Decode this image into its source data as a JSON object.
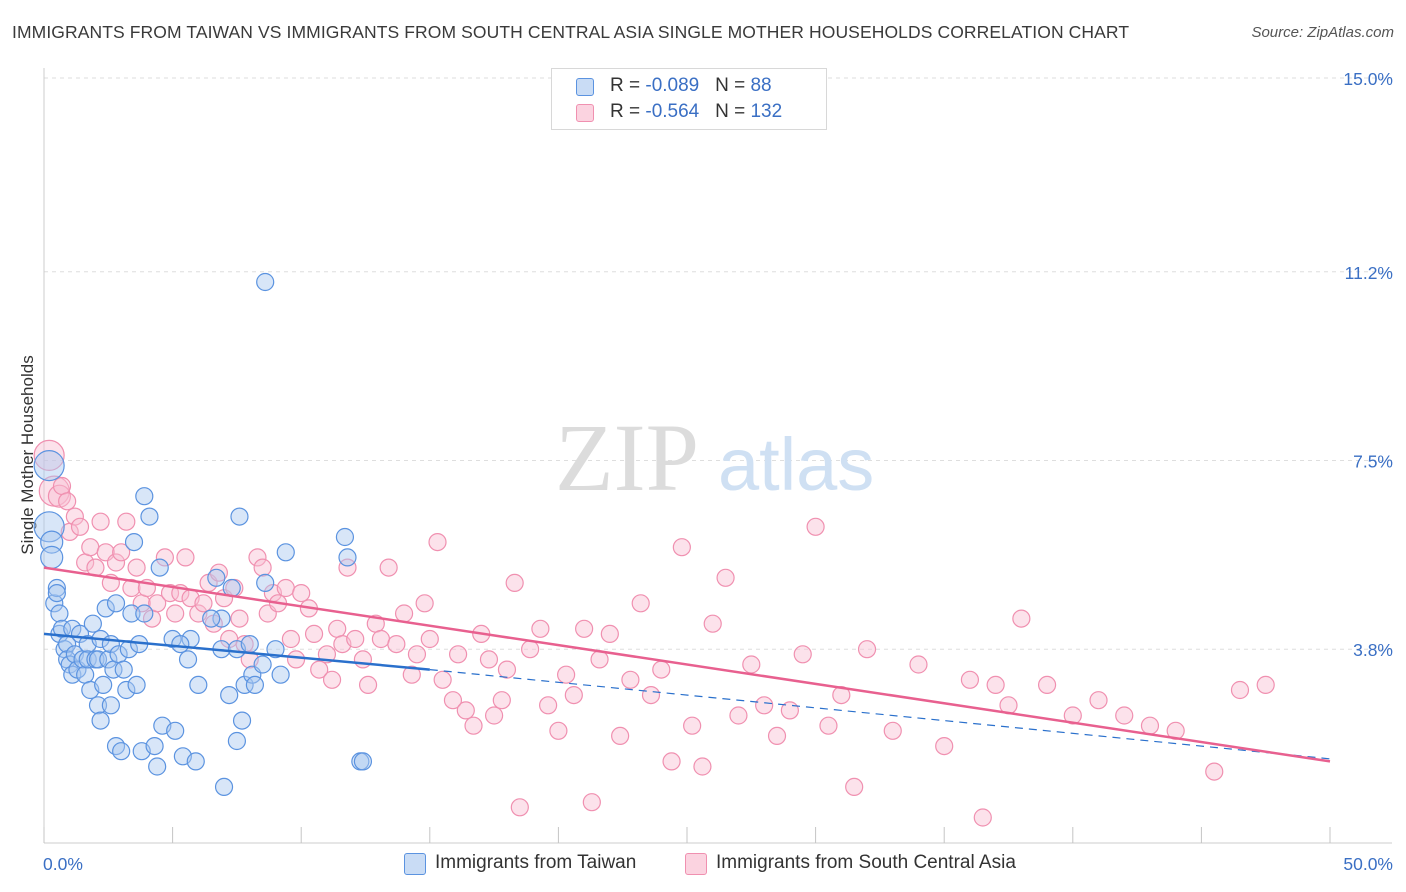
{
  "header": {
    "title": "IMMIGRANTS FROM TAIWAN VS IMMIGRANTS FROM SOUTH CENTRAL ASIA SINGLE MOTHER HOUSEHOLDS CORRELATION CHART",
    "source": "Source: ZipAtlas.com"
  },
  "watermark": {
    "zip": "ZIP",
    "atlas": "atlas"
  },
  "legend": {
    "taiwan": {
      "r_label": "R = ",
      "r": "-0.089",
      "n_label": "N = ",
      "n": " 88"
    },
    "sca": {
      "r_label": "R = ",
      "r": "-0.564",
      "n_label": "N = ",
      "n": "132"
    }
  },
  "chart_data": {
    "type": "scatter",
    "title": "IMMIGRANTS FROM TAIWAN VS IMMIGRANTS FROM SOUTH CENTRAL ASIA SINGLE MOTHER HOUSEHOLDS CORRELATION CHART",
    "xlabel": "",
    "ylabel": "Single Mother Households",
    "xlim": [
      0,
      50
    ],
    "ylim": [
      0,
      15
    ],
    "x_tick_labels": [
      "0.0%",
      "50.0%"
    ],
    "y_ticks": [
      3.8,
      7.5,
      11.2,
      15.0
    ],
    "y_tick_labels": [
      "3.8%",
      "7.5%",
      "11.2%",
      "15.0%"
    ],
    "grid": true,
    "legend_position": "top-center",
    "colors": {
      "taiwan": "#5b93e0",
      "sca": "#f090b0",
      "taiwan_line": "#2a70cc",
      "sca_line": "#e8608f"
    },
    "series": [
      {
        "name": "Immigrants from Taiwan",
        "color": "#5b93e0",
        "trend": {
          "x": [
            0,
            15
          ],
          "y": [
            4.1,
            3.4
          ],
          "dashed_extension_to_x": 50,
          "dashed_end_y": 1.65
        },
        "points": [
          [
            0.2,
            7.4
          ],
          [
            0.2,
            6.2
          ],
          [
            0.3,
            5.9
          ],
          [
            0.3,
            5.6
          ],
          [
            0.4,
            4.7
          ],
          [
            0.5,
            5.0
          ],
          [
            0.5,
            4.9
          ],
          [
            0.6,
            4.5
          ],
          [
            0.6,
            4.1
          ],
          [
            0.7,
            4.2
          ],
          [
            0.8,
            3.8
          ],
          [
            0.9,
            3.9
          ],
          [
            0.9,
            3.6
          ],
          [
            1.0,
            3.5
          ],
          [
            1.1,
            3.3
          ],
          [
            1.1,
            4.2
          ],
          [
            1.2,
            3.7
          ],
          [
            1.3,
            3.4
          ],
          [
            1.4,
            4.1
          ],
          [
            1.5,
            3.6
          ],
          [
            1.6,
            3.3
          ],
          [
            1.7,
            3.9
          ],
          [
            1.7,
            3.6
          ],
          [
            1.8,
            3.0
          ],
          [
            1.9,
            4.3
          ],
          [
            2.0,
            3.6
          ],
          [
            2.1,
            3.6
          ],
          [
            2.1,
            2.7
          ],
          [
            2.2,
            2.4
          ],
          [
            2.2,
            4.0
          ],
          [
            2.3,
            3.1
          ],
          [
            2.4,
            4.6
          ],
          [
            2.5,
            3.6
          ],
          [
            2.6,
            3.9
          ],
          [
            2.6,
            2.7
          ],
          [
            2.7,
            3.4
          ],
          [
            2.8,
            4.7
          ],
          [
            2.8,
            1.9
          ],
          [
            2.9,
            3.7
          ],
          [
            3.0,
            1.8
          ],
          [
            3.1,
            3.4
          ],
          [
            3.2,
            3.0
          ],
          [
            3.3,
            3.8
          ],
          [
            3.4,
            4.5
          ],
          [
            3.5,
            5.9
          ],
          [
            3.6,
            3.1
          ],
          [
            3.7,
            3.9
          ],
          [
            3.8,
            1.8
          ],
          [
            3.9,
            6.8
          ],
          [
            3.9,
            4.5
          ],
          [
            4.1,
            6.4
          ],
          [
            4.3,
            1.9
          ],
          [
            4.4,
            1.5
          ],
          [
            4.5,
            5.4
          ],
          [
            4.6,
            2.3
          ],
          [
            5.0,
            4.0
          ],
          [
            5.1,
            2.2
          ],
          [
            5.4,
            1.7
          ],
          [
            5.6,
            3.6
          ],
          [
            5.7,
            4.0
          ],
          [
            5.9,
            1.6
          ],
          [
            6.0,
            3.1
          ],
          [
            6.7,
            5.2
          ],
          [
            6.9,
            4.4
          ],
          [
            6.9,
            3.8
          ],
          [
            7.0,
            1.1
          ],
          [
            7.2,
            2.9
          ],
          [
            7.3,
            5.0
          ],
          [
            7.5,
            2.0
          ],
          [
            7.5,
            3.8
          ],
          [
            7.6,
            6.4
          ],
          [
            7.7,
            2.4
          ],
          [
            7.8,
            3.1
          ],
          [
            8.1,
            3.3
          ],
          [
            8.6,
            11.0
          ],
          [
            8.6,
            5.1
          ],
          [
            9.0,
            3.8
          ],
          [
            9.2,
            3.3
          ],
          [
            9.4,
            5.7
          ],
          [
            11.7,
            6.0
          ],
          [
            11.8,
            5.6
          ],
          [
            12.3,
            1.6
          ],
          [
            12.4,
            1.6
          ],
          [
            8.0,
            3.9
          ],
          [
            8.2,
            3.1
          ],
          [
            8.5,
            3.5
          ],
          [
            5.3,
            3.9
          ],
          [
            6.5,
            4.4
          ]
        ]
      },
      {
        "name": "Immigrants from South Central Asia",
        "color": "#f090b0",
        "trend": {
          "x": [
            0,
            50
          ],
          "y": [
            5.4,
            1.6
          ]
        },
        "points": [
          [
            0.2,
            7.6
          ],
          [
            0.4,
            6.9
          ],
          [
            0.6,
            6.8
          ],
          [
            0.7,
            7.0
          ],
          [
            0.9,
            6.7
          ],
          [
            1.0,
            6.1
          ],
          [
            1.2,
            6.4
          ],
          [
            1.4,
            6.2
          ],
          [
            1.6,
            5.5
          ],
          [
            1.8,
            5.8
          ],
          [
            2.0,
            5.4
          ],
          [
            2.2,
            6.3
          ],
          [
            2.4,
            5.7
          ],
          [
            2.6,
            5.1
          ],
          [
            2.8,
            5.5
          ],
          [
            3.0,
            5.7
          ],
          [
            3.2,
            6.3
          ],
          [
            3.4,
            5.0
          ],
          [
            3.6,
            5.4
          ],
          [
            3.8,
            4.7
          ],
          [
            4.0,
            5.0
          ],
          [
            4.2,
            4.4
          ],
          [
            4.4,
            4.7
          ],
          [
            4.7,
            5.6
          ],
          [
            4.9,
            4.9
          ],
          [
            5.1,
            4.5
          ],
          [
            5.3,
            4.9
          ],
          [
            5.5,
            5.6
          ],
          [
            5.7,
            4.8
          ],
          [
            6.0,
            4.5
          ],
          [
            6.2,
            4.7
          ],
          [
            6.4,
            5.1
          ],
          [
            6.6,
            4.3
          ],
          [
            6.8,
            5.3
          ],
          [
            7.0,
            4.8
          ],
          [
            7.2,
            4.0
          ],
          [
            7.4,
            5.0
          ],
          [
            7.6,
            4.4
          ],
          [
            7.8,
            3.9
          ],
          [
            8.0,
            3.6
          ],
          [
            8.3,
            5.6
          ],
          [
            8.5,
            5.4
          ],
          [
            8.7,
            4.5
          ],
          [
            8.9,
            4.9
          ],
          [
            9.1,
            4.7
          ],
          [
            9.4,
            5.0
          ],
          [
            9.6,
            4.0
          ],
          [
            9.8,
            3.6
          ],
          [
            10.0,
            4.9
          ],
          [
            10.3,
            4.6
          ],
          [
            10.5,
            4.1
          ],
          [
            10.7,
            3.4
          ],
          [
            11.0,
            3.7
          ],
          [
            11.2,
            3.2
          ],
          [
            11.4,
            4.2
          ],
          [
            11.6,
            3.9
          ],
          [
            11.8,
            5.4
          ],
          [
            12.1,
            4.0
          ],
          [
            12.4,
            3.6
          ],
          [
            12.6,
            3.1
          ],
          [
            12.9,
            4.3
          ],
          [
            13.1,
            4.0
          ],
          [
            13.4,
            5.4
          ],
          [
            13.7,
            3.9
          ],
          [
            14.0,
            4.5
          ],
          [
            14.3,
            3.3
          ],
          [
            14.5,
            3.7
          ],
          [
            14.8,
            4.7
          ],
          [
            15.0,
            4.0
          ],
          [
            15.3,
            5.9
          ],
          [
            15.5,
            3.2
          ],
          [
            15.9,
            2.8
          ],
          [
            16.1,
            3.7
          ],
          [
            16.4,
            2.6
          ],
          [
            16.7,
            2.3
          ],
          [
            17.0,
            4.1
          ],
          [
            17.3,
            3.6
          ],
          [
            17.5,
            2.5
          ],
          [
            17.8,
            2.8
          ],
          [
            18.0,
            3.4
          ],
          [
            18.3,
            5.1
          ],
          [
            18.5,
            0.7
          ],
          [
            18.9,
            3.8
          ],
          [
            19.3,
            4.2
          ],
          [
            19.6,
            2.7
          ],
          [
            20.0,
            2.2
          ],
          [
            20.3,
            3.3
          ],
          [
            20.6,
            2.9
          ],
          [
            21.0,
            4.2
          ],
          [
            21.3,
            0.8
          ],
          [
            21.6,
            3.6
          ],
          [
            22.0,
            4.1
          ],
          [
            22.4,
            2.1
          ],
          [
            22.8,
            3.2
          ],
          [
            23.2,
            4.7
          ],
          [
            23.6,
            2.9
          ],
          [
            24.0,
            3.4
          ],
          [
            24.4,
            1.6
          ],
          [
            24.8,
            5.8
          ],
          [
            25.2,
            2.3
          ],
          [
            25.6,
            1.5
          ],
          [
            26.0,
            4.3
          ],
          [
            26.5,
            5.2
          ],
          [
            27.0,
            2.5
          ],
          [
            27.5,
            3.5
          ],
          [
            28.0,
            2.7
          ],
          [
            28.5,
            2.1
          ],
          [
            29.0,
            2.6
          ],
          [
            29.5,
            3.7
          ],
          [
            30.0,
            6.2
          ],
          [
            30.5,
            2.3
          ],
          [
            31.0,
            2.9
          ],
          [
            31.5,
            1.1
          ],
          [
            32.0,
            3.8
          ],
          [
            33.0,
            2.2
          ],
          [
            34.0,
            3.5
          ],
          [
            35.0,
            1.9
          ],
          [
            36.0,
            3.2
          ],
          [
            36.5,
            0.5
          ],
          [
            37.0,
            3.1
          ],
          [
            37.5,
            2.7
          ],
          [
            38.0,
            4.4
          ],
          [
            39.0,
            3.1
          ],
          [
            40.0,
            2.5
          ],
          [
            41.0,
            2.8
          ],
          [
            42.0,
            2.5
          ],
          [
            43.0,
            2.3
          ],
          [
            44.0,
            2.2
          ],
          [
            45.5,
            1.4
          ],
          [
            46.5,
            3.0
          ],
          [
            47.5,
            3.1
          ]
        ]
      }
    ]
  },
  "bottom_legend": {
    "taiwan": "Immigrants from Taiwan",
    "sca": "Immigrants from South Central Asia"
  }
}
